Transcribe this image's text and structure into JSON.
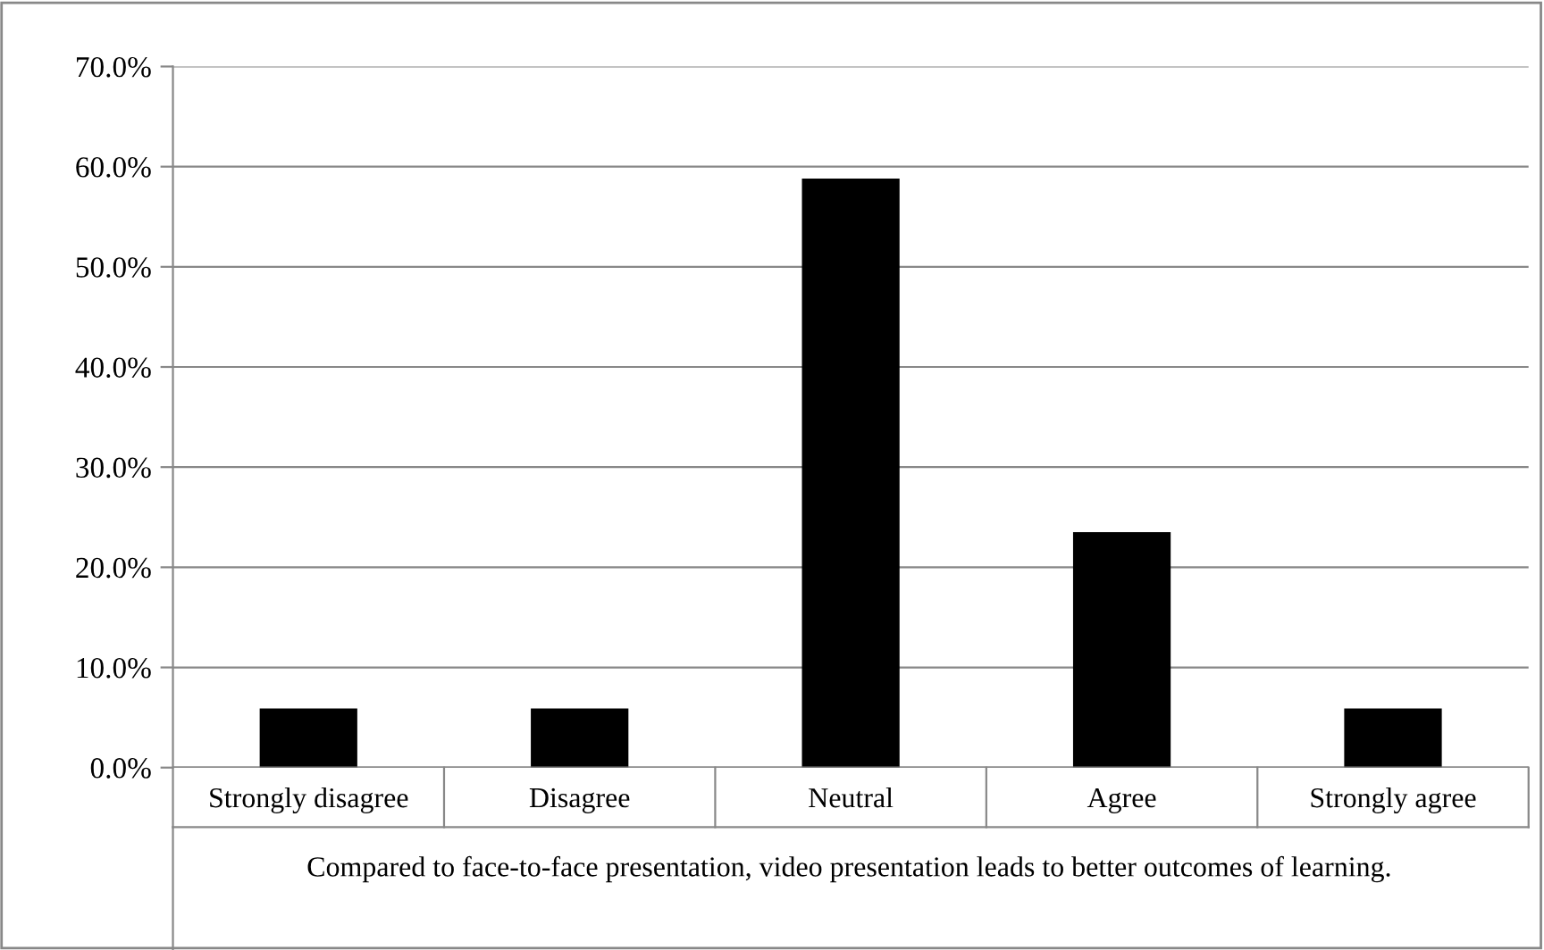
{
  "chart_data": {
    "type": "bar",
    "categories": [
      "Strongly disagree",
      "Disagree",
      "Neutral",
      "Agree",
      "Strongly agree"
    ],
    "values": [
      5.9,
      5.9,
      58.8,
      23.5,
      5.9
    ],
    "color": "#000000",
    "xlabel": "Compared to face-to-face presentation, video presentation leads to better outcomes of learning.",
    "ylim": [
      0,
      70
    ],
    "yticks": [
      {
        "value": 0,
        "label": "0.0%"
      },
      {
        "value": 10,
        "label": "10.0%"
      },
      {
        "value": 20,
        "label": "20.0%"
      },
      {
        "value": 30,
        "label": "30.0%"
      },
      {
        "value": 40,
        "label": "40.0%"
      },
      {
        "value": 50,
        "label": "50.0%"
      },
      {
        "value": 60,
        "label": "60.0%"
      },
      {
        "value": 70,
        "label": "70.0%"
      }
    ],
    "grid": "y"
  }
}
